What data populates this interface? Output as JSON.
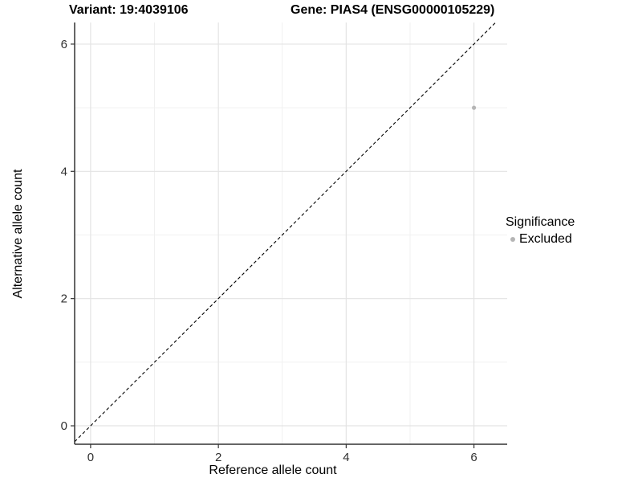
{
  "figure": {
    "title_left": "Variant: 19:4039106",
    "title_right": "Gene: PIAS4 (ENSG00000105229)"
  },
  "axes": {
    "x_label": "Reference allele count",
    "y_label": "Alternative allele count"
  },
  "legend": {
    "title": "Significance",
    "items": [
      {
        "label": "Excluded",
        "color": "#b5b5b5"
      }
    ]
  },
  "colors": {
    "background": "#ffffff",
    "axis_line": "#333333",
    "tick_label": "#303030",
    "grid_major": "#e3e3e3",
    "grid_minor": "#efefef",
    "reference_line": "#000000",
    "point_excluded": "#b5b5b5"
  },
  "chart_data": {
    "type": "scatter",
    "title": "Variant: 19:4039106    Gene: PIAS4 (ENSG00000105229)",
    "xlabel": "Reference allele count",
    "ylabel": "Alternative allele count",
    "xlim": [
      -0.25,
      6.52
    ],
    "ylim": [
      -0.29,
      6.34
    ],
    "x_ticks": [
      0,
      2,
      4,
      6
    ],
    "y_ticks": [
      0,
      2,
      4,
      6
    ],
    "x_minor_ticks": [
      1,
      3,
      5
    ],
    "y_minor_ticks": [
      1,
      3,
      5
    ],
    "grid": true,
    "legend_position": "right",
    "legend_title": "Significance",
    "series": [
      {
        "name": "Excluded",
        "color": "#b5b5b5",
        "points": [
          {
            "x": 6,
            "y": 5
          }
        ]
      }
    ],
    "reference_line": {
      "kind": "identity",
      "equation": "y = x",
      "style": "dashed",
      "color": "#000000"
    }
  }
}
